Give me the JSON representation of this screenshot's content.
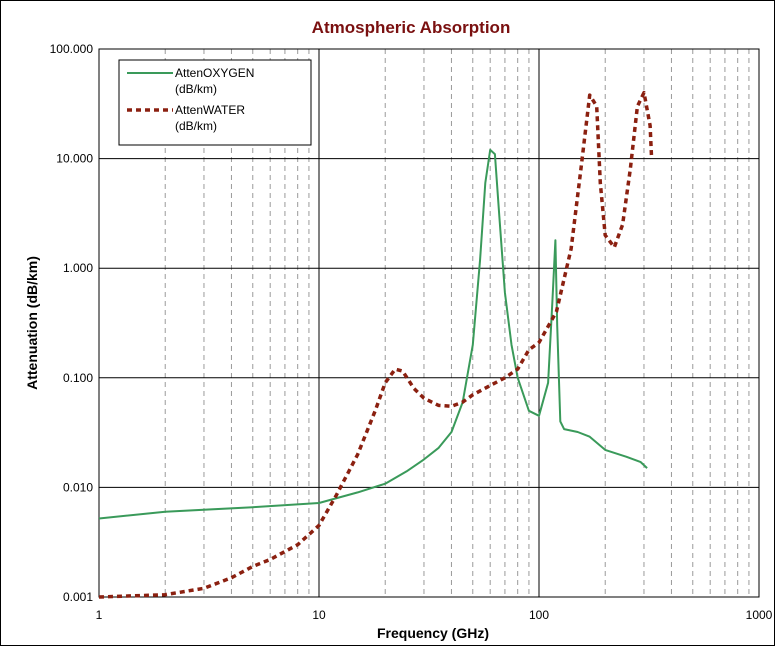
{
  "chart_data": {
    "type": "line",
    "title": "Atmospheric Absorption",
    "xlabel": "Frequency (GHz)",
    "ylabel": "Attenuation (dB/km)",
    "x_scale": "log",
    "y_scale": "log",
    "xlim": [
      1,
      1000
    ],
    "ylim": [
      0.001,
      100
    ],
    "x_tick_labels": [
      "1",
      "10",
      "100",
      "1000"
    ],
    "y_tick_labels": [
      "0.001",
      "0.010",
      "0.100",
      "1.000",
      "10.000",
      "100.000"
    ],
    "grid": "major solid, minor dashed",
    "legend_position": "top-left",
    "colors": {
      "title": "#7a1010",
      "oxygen": "#3a9a5a",
      "water": "#8b2010",
      "major_grid": "#000000",
      "minor_grid": "#9a9a9a"
    },
    "series": [
      {
        "name_lines": [
          "AttenOXYGEN",
          "(dB/km)"
        ],
        "color": "#3a9a5a",
        "dash": "solid",
        "points": [
          [
            1,
            0.0052
          ],
          [
            2,
            0.006
          ],
          [
            5,
            0.0066
          ],
          [
            10,
            0.0072
          ],
          [
            15,
            0.009
          ],
          [
            20,
            0.0108
          ],
          [
            25,
            0.014
          ],
          [
            30,
            0.018
          ],
          [
            35,
            0.023
          ],
          [
            40,
            0.032
          ],
          [
            45,
            0.06
          ],
          [
            50,
            0.2
          ],
          [
            54,
            1.2
          ],
          [
            57,
            6
          ],
          [
            60,
            12
          ],
          [
            63,
            11
          ],
          [
            66,
            3
          ],
          [
            70,
            0.6
          ],
          [
            75,
            0.2
          ],
          [
            80,
            0.1
          ],
          [
            90,
            0.05
          ],
          [
            100,
            0.045
          ],
          [
            110,
            0.09
          ],
          [
            115,
            0.5
          ],
          [
            118.75,
            1.8
          ],
          [
            121,
            0.3
          ],
          [
            125,
            0.04
          ],
          [
            130,
            0.034
          ],
          [
            150,
            0.032
          ],
          [
            170,
            0.029
          ],
          [
            200,
            0.022
          ],
          [
            250,
            0.019
          ],
          [
            290,
            0.017
          ],
          [
            310,
            0.015
          ]
        ]
      },
      {
        "name_lines": [
          "AttenWATER",
          "(dB/km)"
        ],
        "color": "#8b2010",
        "dash": "dotted",
        "points": [
          [
            1,
            0.001
          ],
          [
            2,
            0.00105
          ],
          [
            3,
            0.0012
          ],
          [
            4,
            0.0015
          ],
          [
            5,
            0.0019
          ],
          [
            6,
            0.0022
          ],
          [
            7,
            0.0026
          ],
          [
            8,
            0.003
          ],
          [
            10,
            0.0045
          ],
          [
            12,
            0.0085
          ],
          [
            15,
            0.02
          ],
          [
            18,
            0.05
          ],
          [
            20,
            0.09
          ],
          [
            22.2,
            0.12
          ],
          [
            24,
            0.115
          ],
          [
            27,
            0.08
          ],
          [
            30,
            0.065
          ],
          [
            35,
            0.056
          ],
          [
            40,
            0.055
          ],
          [
            45,
            0.06
          ],
          [
            50,
            0.07
          ],
          [
            60,
            0.085
          ],
          [
            70,
            0.1
          ],
          [
            80,
            0.12
          ],
          [
            90,
            0.18
          ],
          [
            100,
            0.21
          ],
          [
            120,
            0.4
          ],
          [
            140,
            1.5
          ],
          [
            155,
            8
          ],
          [
            170,
            38
          ],
          [
            183,
            30
          ],
          [
            190,
            6
          ],
          [
            200,
            2
          ],
          [
            220,
            1.55
          ],
          [
            240,
            2.5
          ],
          [
            260,
            8
          ],
          [
            280,
            30
          ],
          [
            300,
            40
          ],
          [
            320,
            20
          ],
          [
            325,
            10
          ]
        ]
      }
    ]
  }
}
